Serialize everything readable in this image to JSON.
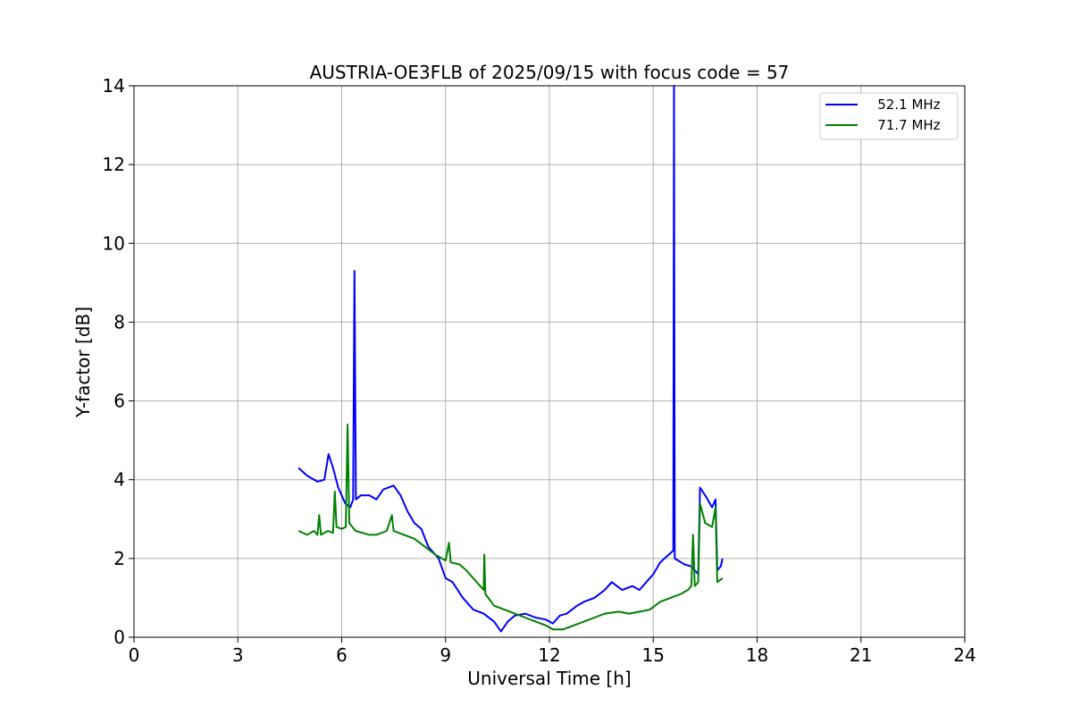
{
  "chart_data": {
    "type": "line",
    "title": "AUSTRIA-OE3FLB of 2025/09/15 with focus code = 57",
    "xlabel": "Universal Time [h]",
    "ylabel": "Y-factor [dB]",
    "xlim": [
      0,
      24
    ],
    "ylim": [
      0,
      14
    ],
    "xticks": [
      "0",
      "3",
      "6",
      "9",
      "12",
      "15",
      "18",
      "21",
      "24"
    ],
    "yticks": [
      "0",
      "2",
      "4",
      "6",
      "8",
      "10",
      "12",
      "14"
    ],
    "grid": true,
    "legend_position": "top-right",
    "series": [
      {
        "name": "   52.1 MHz",
        "color": "#0000ff",
        "points": [
          [
            4.75,
            4.3
          ],
          [
            5.0,
            4.1
          ],
          [
            5.3,
            3.95
          ],
          [
            5.5,
            4.0
          ],
          [
            5.62,
            4.65
          ],
          [
            5.75,
            4.3
          ],
          [
            5.9,
            3.8
          ],
          [
            6.1,
            3.4
          ],
          [
            6.25,
            3.3
          ],
          [
            6.33,
            3.5
          ],
          [
            6.37,
            9.3
          ],
          [
            6.41,
            3.5
          ],
          [
            6.55,
            3.6
          ],
          [
            6.8,
            3.6
          ],
          [
            7.0,
            3.5
          ],
          [
            7.2,
            3.75
          ],
          [
            7.5,
            3.85
          ],
          [
            7.7,
            3.6
          ],
          [
            7.9,
            3.2
          ],
          [
            8.1,
            2.9
          ],
          [
            8.3,
            2.75
          ],
          [
            8.5,
            2.3
          ],
          [
            8.8,
            2.0
          ],
          [
            9.0,
            1.5
          ],
          [
            9.2,
            1.4
          ],
          [
            9.5,
            1.0
          ],
          [
            9.8,
            0.7
          ],
          [
            10.1,
            0.6
          ],
          [
            10.4,
            0.4
          ],
          [
            10.6,
            0.15
          ],
          [
            10.8,
            0.4
          ],
          [
            11.0,
            0.55
          ],
          [
            11.3,
            0.6
          ],
          [
            11.6,
            0.5
          ],
          [
            11.9,
            0.45
          ],
          [
            12.1,
            0.35
          ],
          [
            12.3,
            0.55
          ],
          [
            12.5,
            0.6
          ],
          [
            12.8,
            0.8
          ],
          [
            13.0,
            0.9
          ],
          [
            13.3,
            1.0
          ],
          [
            13.6,
            1.2
          ],
          [
            13.8,
            1.4
          ],
          [
            14.1,
            1.2
          ],
          [
            14.4,
            1.3
          ],
          [
            14.6,
            1.2
          ],
          [
            14.8,
            1.4
          ],
          [
            15.0,
            1.6
          ],
          [
            15.2,
            1.9
          ],
          [
            15.45,
            2.1
          ],
          [
            15.58,
            2.2
          ],
          [
            15.6,
            14.0
          ],
          [
            15.62,
            2.0
          ],
          [
            15.9,
            1.85
          ],
          [
            16.1,
            1.8
          ],
          [
            16.3,
            1.6
          ],
          [
            16.35,
            3.8
          ],
          [
            16.5,
            3.6
          ],
          [
            16.7,
            3.3
          ],
          [
            16.8,
            3.5
          ],
          [
            16.85,
            1.7
          ],
          [
            16.95,
            1.8
          ],
          [
            17.0,
            2.0
          ]
        ]
      },
      {
        "name": "   71.7 MHz",
        "color": "#008000",
        "points": [
          [
            4.75,
            2.7
          ],
          [
            5.0,
            2.6
          ],
          [
            5.2,
            2.7
          ],
          [
            5.3,
            2.6
          ],
          [
            5.35,
            3.1
          ],
          [
            5.4,
            2.6
          ],
          [
            5.6,
            2.7
          ],
          [
            5.75,
            2.65
          ],
          [
            5.8,
            3.7
          ],
          [
            5.85,
            2.8
          ],
          [
            6.0,
            2.75
          ],
          [
            6.12,
            2.8
          ],
          [
            6.17,
            5.4
          ],
          [
            6.22,
            2.9
          ],
          [
            6.4,
            2.7
          ],
          [
            6.8,
            2.6
          ],
          [
            7.0,
            2.6
          ],
          [
            7.3,
            2.7
          ],
          [
            7.45,
            3.1
          ],
          [
            7.5,
            2.7
          ],
          [
            7.8,
            2.6
          ],
          [
            8.1,
            2.5
          ],
          [
            8.4,
            2.3
          ],
          [
            8.7,
            2.1
          ],
          [
            9.0,
            1.95
          ],
          [
            9.1,
            2.4
          ],
          [
            9.15,
            1.9
          ],
          [
            9.4,
            1.85
          ],
          [
            9.6,
            1.7
          ],
          [
            9.9,
            1.4
          ],
          [
            10.1,
            1.2
          ],
          [
            10.12,
            2.1
          ],
          [
            10.15,
            1.1
          ],
          [
            10.4,
            0.8
          ],
          [
            10.7,
            0.7
          ],
          [
            11.0,
            0.6
          ],
          [
            11.3,
            0.5
          ],
          [
            11.6,
            0.4
          ],
          [
            11.9,
            0.3
          ],
          [
            12.1,
            0.2
          ],
          [
            12.4,
            0.2
          ],
          [
            12.7,
            0.3
          ],
          [
            13.0,
            0.4
          ],
          [
            13.3,
            0.5
          ],
          [
            13.6,
            0.6
          ],
          [
            14.0,
            0.65
          ],
          [
            14.3,
            0.6
          ],
          [
            14.6,
            0.65
          ],
          [
            14.9,
            0.7
          ],
          [
            15.2,
            0.9
          ],
          [
            15.5,
            1.0
          ],
          [
            15.8,
            1.1
          ],
          [
            16.0,
            1.2
          ],
          [
            16.1,
            1.3
          ],
          [
            16.15,
            2.6
          ],
          [
            16.2,
            1.3
          ],
          [
            16.3,
            1.4
          ],
          [
            16.35,
            3.4
          ],
          [
            16.5,
            2.9
          ],
          [
            16.7,
            2.8
          ],
          [
            16.8,
            3.3
          ],
          [
            16.85,
            1.4
          ],
          [
            17.0,
            1.5
          ]
        ]
      }
    ]
  }
}
